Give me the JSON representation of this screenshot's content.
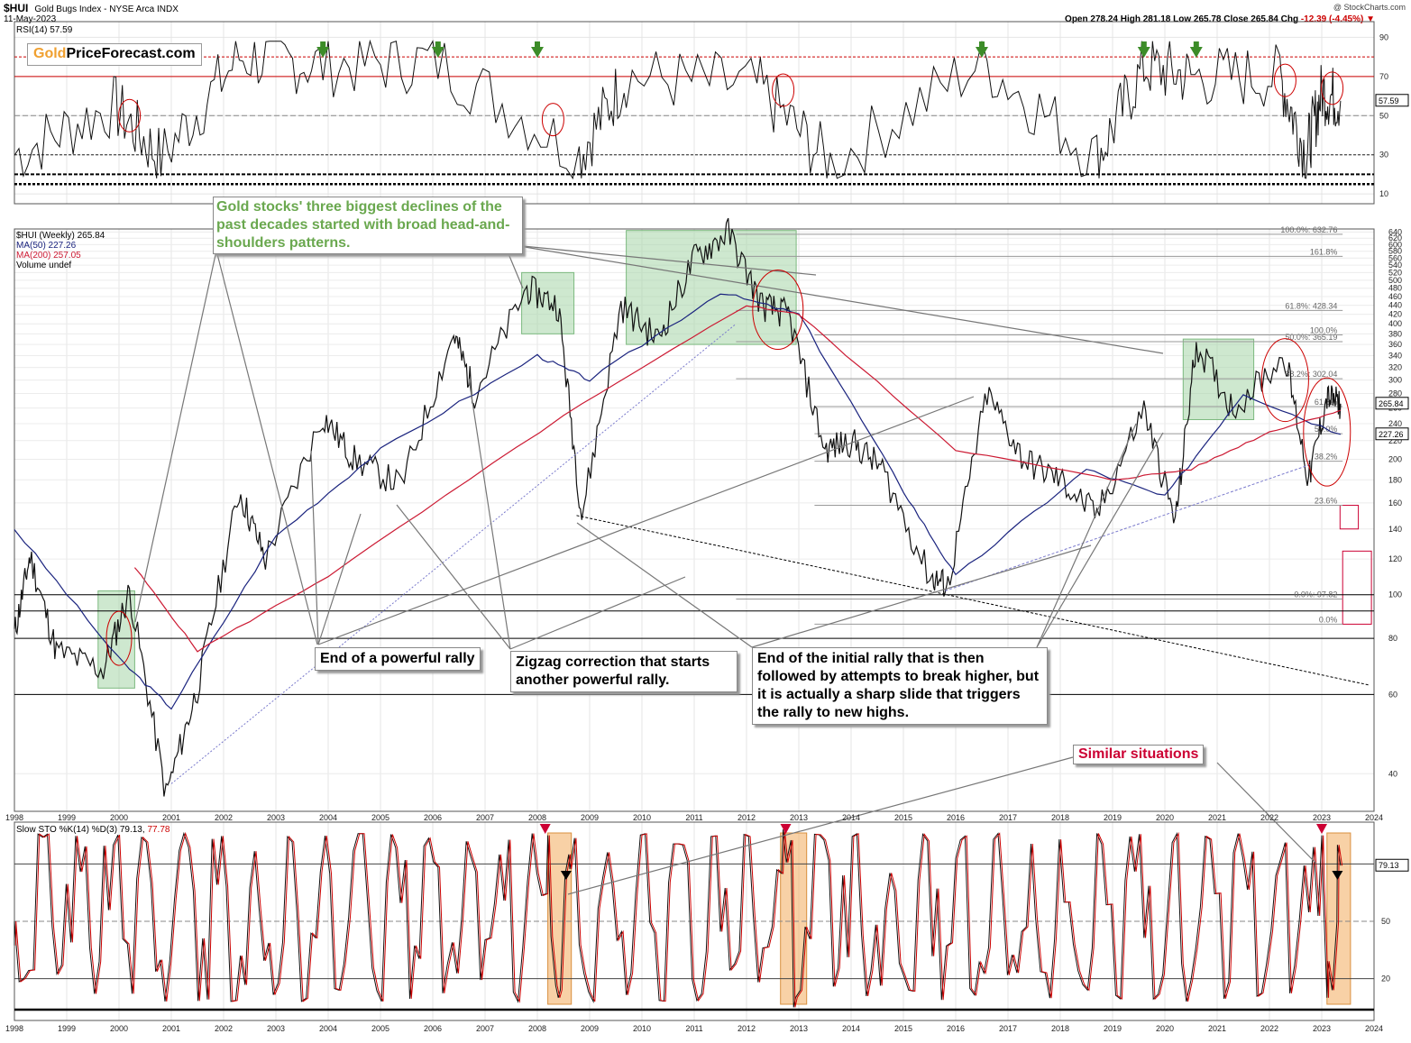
{
  "header": {
    "symbol": "$HUI",
    "description": "Gold Bugs Index - NYSE Arca INDX",
    "date": "11-May-2023",
    "ohlc": "Open 278.24  High 281.18  Low 265.78  Close 265.84  Chg ",
    "change": "-12.39 (-4.45%) ▼",
    "credit": "@ StockCharts.com"
  },
  "logo": {
    "part1": "Gold",
    "part2": "PriceForecast.com"
  },
  "rsi_panel": {
    "label": "RSI(14) 57.59",
    "value_tag": "57.59"
  },
  "price_panel": {
    "legend_main": "$HUI (Weekly) 265.84",
    "legend_ma50": "MA(50) 227.26",
    "legend_ma200": "MA(200) 257.05",
    "legend_volume": "Volume undef",
    "tag_close": "265.84",
    "tag_ma50": "227.26"
  },
  "sto_panel": {
    "label": "Slow STO %K(14) %D(3) 79.13, ",
    "label_d": "77.78",
    "value_tag": "79.13"
  },
  "annotations": {
    "green_note": "Gold stocks' three biggest declines of the past decades started with broad head-and-shoulders patterns.",
    "rally": "End of a powerful rally",
    "zigzag": "Zigzag correction that starts another powerful rally.",
    "initial": "End of the initial rally that is then followed by attempts to break higher, but it is actually a sharp slide that triggers the rally to new highs.",
    "similar": "Similar situations"
  },
  "colors": {
    "ma50": "#1a237e",
    "ma200": "#cc1a33",
    "green_box": "#a5d6a7",
    "orange_box": "#f4b26b",
    "note_green": "#6aa84f",
    "similar_red": "#cc0033"
  },
  "chart_data": [
    {
      "type": "line",
      "panel": "RSI(14)",
      "series": [
        {
          "name": "RSI(14)",
          "x": [
            1998.0,
            1999.9,
            2000.8,
            2002.3,
            2003.9,
            2006.1,
            2008.8,
            2009.7,
            2012.2,
            2013.6,
            2016.5,
            2018.7,
            2019.6,
            2020.5,
            2022.2,
            2022.7,
            2023.0,
            2023.36
          ],
          "values": [
            30,
            55,
            28,
            80,
            76,
            78,
            30,
            70,
            65,
            25,
            78,
            28,
            75,
            70,
            70,
            30,
            62,
            57.59
          ]
        }
      ],
      "yticks": [
        10,
        30,
        50,
        70,
        90
      ],
      "reference_lines": [
        70,
        80,
        30,
        20,
        15
      ]
    },
    {
      "type": "line",
      "panel": "$HUI (Weekly)",
      "x_ticks": [
        "1998",
        "1999",
        "2000",
        "2001",
        "2002",
        "2003",
        "2004",
        "2005",
        "2006",
        "2007",
        "2008",
        "2009",
        "2010",
        "2011",
        "2012",
        "2013",
        "2014",
        "2015",
        "2016",
        "2017",
        "2018",
        "2019",
        "2020",
        "2021",
        "2022",
        "2023",
        "2024"
      ],
      "y_scale": "log",
      "yticks": [
        40,
        60,
        80,
        100,
        120,
        140,
        160,
        180,
        200,
        220,
        240,
        260,
        280,
        300,
        320,
        340,
        360,
        380,
        400,
        420,
        440,
        460,
        480,
        500,
        520,
        540,
        560,
        580,
        600,
        620,
        640
      ],
      "series": [
        {
          "name": "$HUI (Weekly)",
          "x": [
            1998.0,
            1998.3,
            1998.8,
            1999.7,
            2000.2,
            2000.9,
            2001.5,
            2002.3,
            2002.8,
            2003.9,
            2004.5,
            2005.4,
            2006.4,
            2006.8,
            2007.8,
            2008.4,
            2008.85,
            2009.6,
            2010.3,
            2011.0,
            2011.65,
            2012.3,
            2012.8,
            2013.5,
            2014.0,
            2014.6,
            2015.5,
            2015.85,
            2016.6,
            2017.3,
            2018.0,
            2018.7,
            2019.6,
            2020.2,
            2020.6,
            2021.3,
            2022.3,
            2022.75,
            2023.1,
            2023.36
          ],
          "values": [
            82,
            122,
            75,
            68,
            102,
            36,
            62,
            170,
            120,
            250,
            200,
            175,
            380,
            280,
            480,
            440,
            150,
            440,
            370,
            560,
            640,
            440,
            420,
            210,
            220,
            190,
            110,
            105,
            280,
            200,
            180,
            150,
            260,
            145,
            362,
            260,
            340,
            180,
            275,
            265.84
          ]
        },
        {
          "name": "MA(50)",
          "x": [
            1998.0,
            2000.0,
            2001.0,
            2003.0,
            2005.0,
            2008.0,
            2009.0,
            2011.5,
            2013.0,
            2015.0,
            2016.0,
            2018.5,
            2020.0,
            2021.5,
            2023.36
          ],
          "values": [
            140,
            72,
            56,
            135,
            210,
            340,
            300,
            470,
            420,
            170,
            110,
            190,
            165,
            280,
            227.26
          ]
        },
        {
          "name": "MA(200)",
          "x": [
            2000.3,
            2001.5,
            2004.0,
            2008.5,
            2012.0,
            2013.0,
            2016.0,
            2019.0,
            2020.5,
            2022.0,
            2023.36
          ],
          "values": [
            115,
            75,
            110,
            250,
            440,
            420,
            210,
            180,
            190,
            230,
            257.05
          ]
        }
      ],
      "fibonacci_levels": [
        {
          "label": "100.0%: 632.76",
          "value": 632.76
        },
        {
          "label": "161.8%",
          "value": 565
        },
        {
          "label": "61.8%: 428.34",
          "value": 428.34
        },
        {
          "label": "50.0%: 365.19",
          "value": 365.19
        },
        {
          "label": "100.0%",
          "value": 378
        },
        {
          "label": "38.2%: 302.04",
          "value": 302.04
        },
        {
          "label": "61.8%",
          "value": 262
        },
        {
          "label": "50.0%",
          "value": 228
        },
        {
          "label": "38.2%",
          "value": 198
        },
        {
          "label": "23.6%",
          "value": 158
        },
        {
          "label": "0.0%: 97.82",
          "value": 97.82
        },
        {
          "label": "0.0%",
          "value": 86
        }
      ]
    },
    {
      "type": "line",
      "panel": "Slow STO %K(14) %D(3)",
      "series": [
        {
          "name": "%K(14)",
          "x": [
            1998.0,
            2008.2,
            2008.4,
            2008.6,
            2012.7,
            2012.9,
            2023.0,
            2023.1,
            2023.3,
            2023.36
          ],
          "values": [
            50,
            95,
            10,
            85,
            98,
            5,
            95,
            10,
            90,
            79.13
          ]
        },
        {
          "name": "%D(3)",
          "x": [
            2023.36
          ],
          "values": [
            77.78
          ]
        }
      ],
      "yticks": [
        20,
        50,
        80
      ]
    }
  ]
}
